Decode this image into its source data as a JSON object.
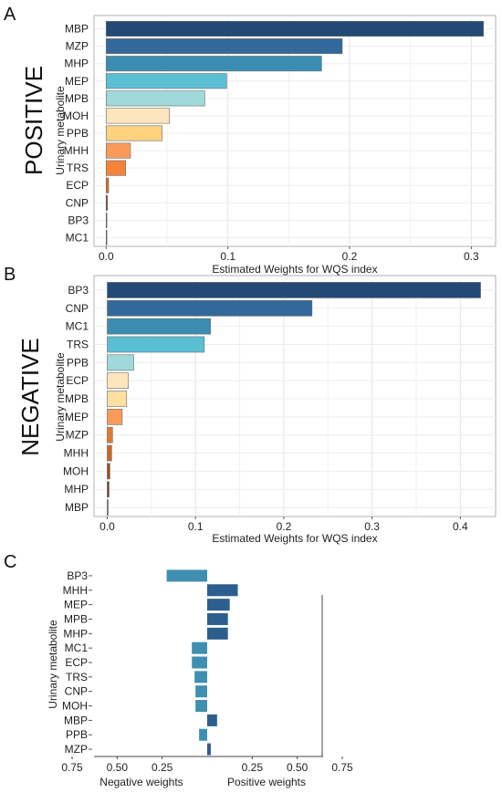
{
  "chart_data": [
    {
      "panel": "A",
      "type": "bar",
      "orientation": "horizontal",
      "side_title": "POSITIVE",
      "ylabel": "Urinary metabolite",
      "xlabel": "Estimated Weights for WQS index",
      "categories": [
        "MBP",
        "MZP",
        "MHP",
        "MEP",
        "MPB",
        "MOH",
        "PPB",
        "MHH",
        "TRS",
        "ECP",
        "CNP",
        "BP3",
        "MC1"
      ],
      "values": [
        0.31,
        0.194,
        0.177,
        0.099,
        0.081,
        0.052,
        0.046,
        0.02,
        0.016,
        0.002,
        0.001,
        0.0005,
        0.0003
      ],
      "colors": [
        "#234a75",
        "#33699a",
        "#3a8db0",
        "#5bbfd3",
        "#9fd9da",
        "#fde6bd",
        "#fdd27e",
        "#fa9a5a",
        "#f3843a",
        "#cc6b2e",
        "#7b3216",
        "#555555",
        "#6e2a12"
      ],
      "xlim": [
        -0.01,
        0.32
      ],
      "xticks": [
        0.0,
        0.1,
        0.2,
        0.3
      ],
      "xtick_labels": [
        "0.0",
        "0.1",
        "0.2",
        "0.3"
      ],
      "grid": true
    },
    {
      "panel": "B",
      "type": "bar",
      "orientation": "horizontal",
      "side_title": "NEGATIVE",
      "ylabel": "Urinary metabolite",
      "xlabel": "Estimated Weights for WQS index",
      "categories": [
        "BP3",
        "CNP",
        "MC1",
        "TRS",
        "PPB",
        "ECP",
        "MPB",
        "MEP",
        "MZP",
        "MHH",
        "MOH",
        "MHP",
        "MBP"
      ],
      "values": [
        0.423,
        0.232,
        0.117,
        0.11,
        0.03,
        0.024,
        0.022,
        0.017,
        0.006,
        0.005,
        0.003,
        0.002,
        0.001
      ],
      "colors": [
        "#234a75",
        "#33699a",
        "#3a8db0",
        "#5bbfd3",
        "#9fd9da",
        "#fde6bd",
        "#fde0a0",
        "#f89c5a",
        "#e07a30",
        "#c96824",
        "#9c4b1c",
        "#7b3216",
        "#5a2410"
      ],
      "xlim": [
        -0.015,
        0.44
      ],
      "xticks": [
        0.0,
        0.1,
        0.2,
        0.3,
        0.4
      ],
      "xtick_labels": [
        "0.0",
        "0.1",
        "0.2",
        "0.3",
        "0.4"
      ],
      "grid": true
    },
    {
      "panel": "C",
      "type": "bar",
      "orientation": "horizontal",
      "ylabel": "Urinary metabolite",
      "categories": [
        "BP3",
        "MHH",
        "MEP",
        "MPB",
        "MHP",
        "MC1",
        "ECP",
        "TRS",
        "CNP",
        "MOH",
        "MBP",
        "PPB",
        "MZP"
      ],
      "values": [
        -0.225,
        0.17,
        0.125,
        0.115,
        0.115,
        -0.085,
        -0.085,
        -0.07,
        -0.065,
        -0.065,
        0.055,
        -0.045,
        0.02
      ],
      "colors": [
        "#3f8fb0",
        "#2d5f8e",
        "#2d5f8e",
        "#2d5f8e",
        "#2d5f8e",
        "#3f8fb0",
        "#3f8fb0",
        "#3f8fb0",
        "#3f8fb0",
        "#3f8fb0",
        "#2d5f8e",
        "#3f8fb0",
        "#2d5f8e"
      ],
      "xticks": [
        -0.75,
        -0.5,
        -0.25,
        0.25,
        0.5,
        0.75
      ],
      "xtick_labels": [
        "0.75",
        "0.50",
        "0.25",
        "0.25",
        "0.50",
        "0.75"
      ],
      "neg_label": "Negative weights",
      "pos_label": "Positive weights",
      "grid": false
    }
  ]
}
